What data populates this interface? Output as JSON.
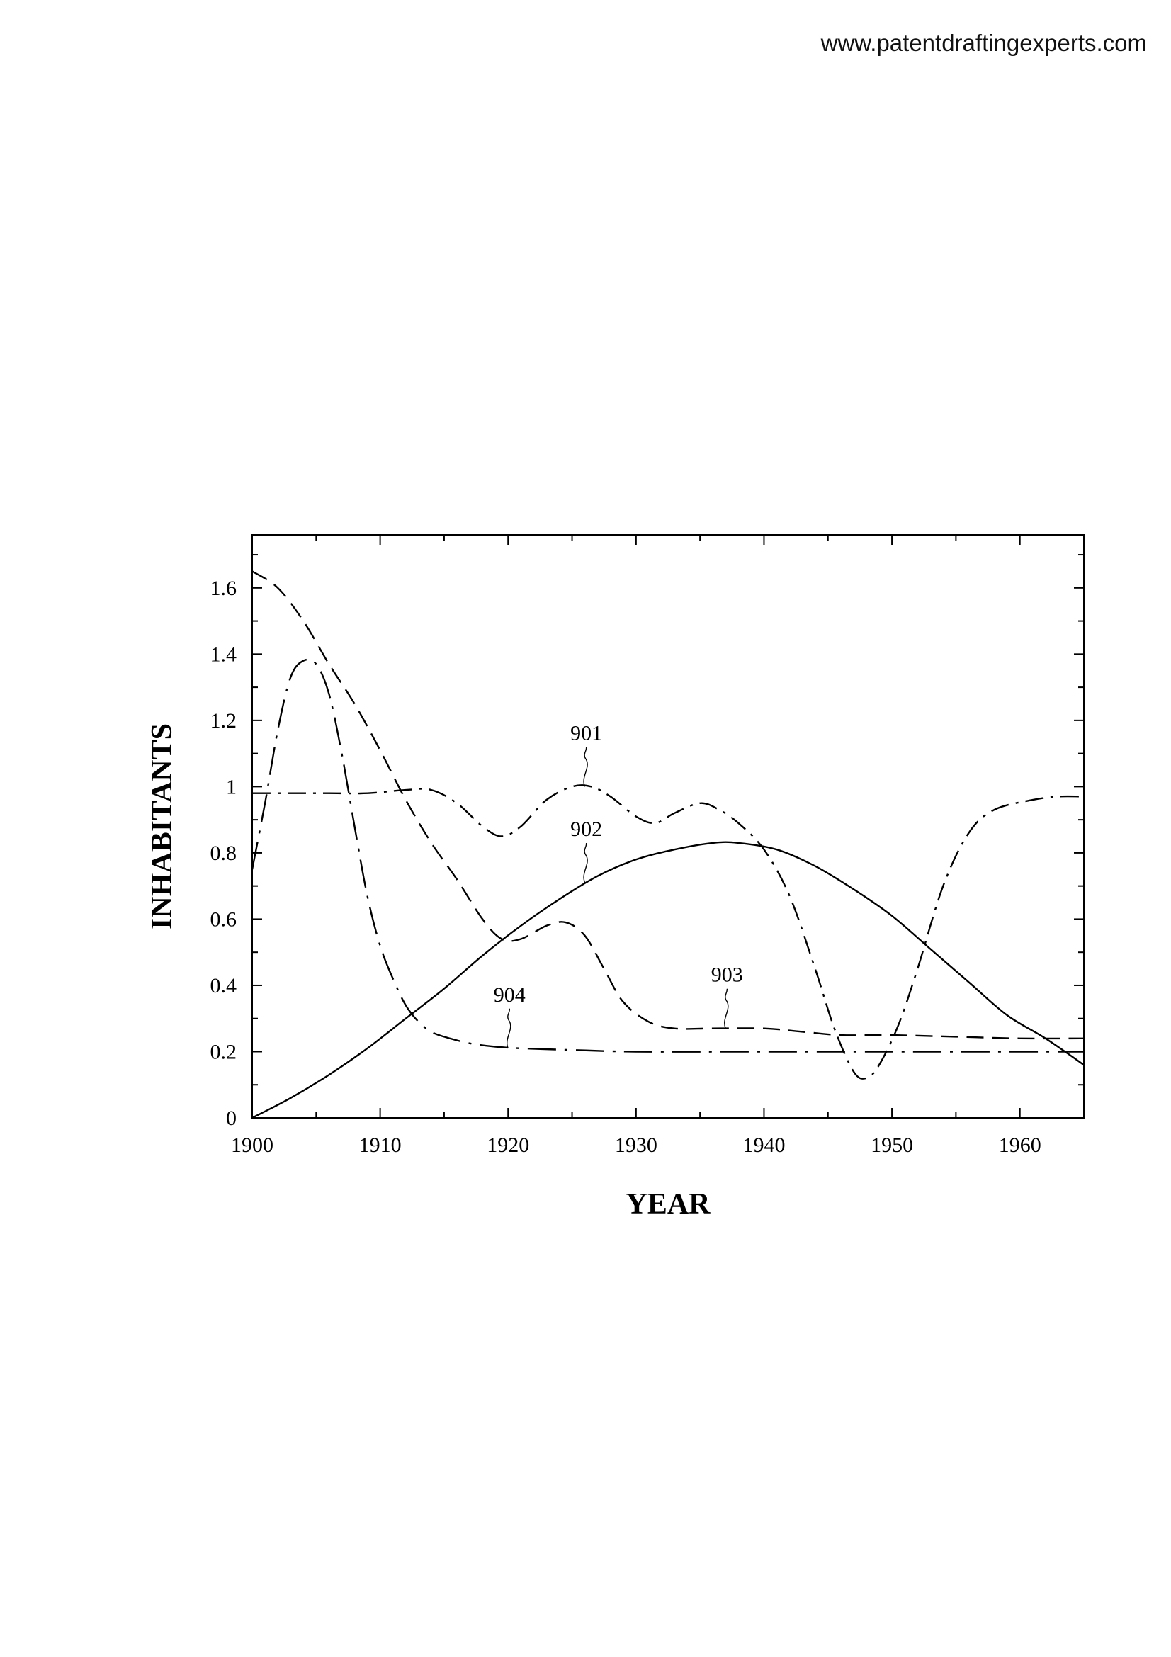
{
  "header": {
    "watermark": "www.patentdraftingexperts.com"
  },
  "chart_data": {
    "type": "line",
    "title": "",
    "xlabel": "YEAR",
    "ylabel": "INHABITANTS",
    "xlim": [
      1900,
      1965
    ],
    "ylim": [
      0,
      1.76
    ],
    "grid": false,
    "x_ticks": [
      1900,
      1910,
      1920,
      1930,
      1940,
      1950,
      1960
    ],
    "x_tick_labels": [
      "1900",
      "1910",
      "1920",
      "1930",
      "1940",
      "1950",
      "1960"
    ],
    "y_ticks": [
      0,
      0.2,
      0.4,
      0.6,
      0.8,
      1.0,
      1.2,
      1.4,
      1.6
    ],
    "y_tick_labels": [
      "0",
      "0.2",
      "0.4",
      "0.6",
      "0.8",
      "1",
      "1.2",
      "1.4",
      "1.6"
    ],
    "series": [
      {
        "id": "901",
        "label": "901",
        "dash": "dash-dot",
        "label_anchor": [
          1926,
          1.0
        ],
        "x": [
          1900,
          1903,
          1906,
          1909,
          1912,
          1914,
          1916,
          1918,
          1919.5,
          1921,
          1923,
          1925,
          1926.5,
          1928,
          1930,
          1931.5,
          1933,
          1935,
          1936.5,
          1938,
          1940,
          1942,
          1944,
          1945.5,
          1947,
          1948,
          1949,
          1950.5,
          1952,
          1954,
          1956,
          1958,
          1961,
          1963,
          1965
        ],
        "y": [
          0.98,
          0.98,
          0.98,
          0.98,
          0.99,
          0.99,
          0.95,
          0.88,
          0.85,
          0.88,
          0.96,
          1.0,
          1.0,
          0.97,
          0.91,
          0.89,
          0.92,
          0.95,
          0.93,
          0.89,
          0.81,
          0.67,
          0.45,
          0.27,
          0.14,
          0.12,
          0.16,
          0.28,
          0.45,
          0.7,
          0.86,
          0.93,
          0.96,
          0.97,
          0.97
        ]
      },
      {
        "id": "902",
        "label": "902",
        "dash": "solid",
        "label_anchor": [
          1926,
          0.71
        ],
        "x": [
          1900,
          1903,
          1906,
          1909,
          1912,
          1915,
          1918,
          1921,
          1924,
          1927,
          1930,
          1933,
          1936,
          1938,
          1941,
          1944,
          1947,
          1950,
          1953,
          1956,
          1959,
          1962,
          1965
        ],
        "y": [
          0.0,
          0.06,
          0.13,
          0.21,
          0.3,
          0.39,
          0.49,
          0.58,
          0.66,
          0.73,
          0.78,
          0.81,
          0.83,
          0.83,
          0.81,
          0.76,
          0.69,
          0.61,
          0.51,
          0.41,
          0.31,
          0.24,
          0.16
        ]
      },
      {
        "id": "903",
        "label": "903",
        "dash": "dashed",
        "label_anchor": [
          1937,
          0.27
        ],
        "x": [
          1900,
          1902,
          1904,
          1906,
          1908,
          1910,
          1912,
          1914,
          1916,
          1918,
          1919.5,
          1921,
          1923,
          1924.5,
          1926,
          1927.5,
          1929,
          1931,
          1933,
          1936,
          1940,
          1943,
          1946,
          1950,
          1955,
          1960,
          1965
        ],
        "y": [
          1.65,
          1.6,
          1.5,
          1.37,
          1.25,
          1.11,
          0.96,
          0.83,
          0.72,
          0.6,
          0.54,
          0.54,
          0.58,
          0.59,
          0.55,
          0.45,
          0.35,
          0.29,
          0.27,
          0.27,
          0.27,
          0.26,
          0.25,
          0.25,
          0.245,
          0.24,
          0.24
        ]
      },
      {
        "id": "904",
        "label": "904",
        "dash": "long-dash-dot",
        "label_anchor": [
          1920,
          0.21
        ],
        "x": [
          1900,
          1901,
          1902,
          1903,
          1904,
          1905,
          1906,
          1907,
          1908,
          1909,
          1910,
          1911,
          1912,
          1913,
          1914,
          1915,
          1917,
          1919,
          1921,
          1925,
          1930,
          1940,
          1950,
          1960,
          1965
        ],
        "y": [
          0.75,
          0.95,
          1.17,
          1.33,
          1.38,
          1.37,
          1.28,
          1.1,
          0.88,
          0.67,
          0.52,
          0.42,
          0.34,
          0.29,
          0.26,
          0.245,
          0.225,
          0.215,
          0.21,
          0.205,
          0.2,
          0.2,
          0.2,
          0.2,
          0.2
        ]
      }
    ]
  }
}
